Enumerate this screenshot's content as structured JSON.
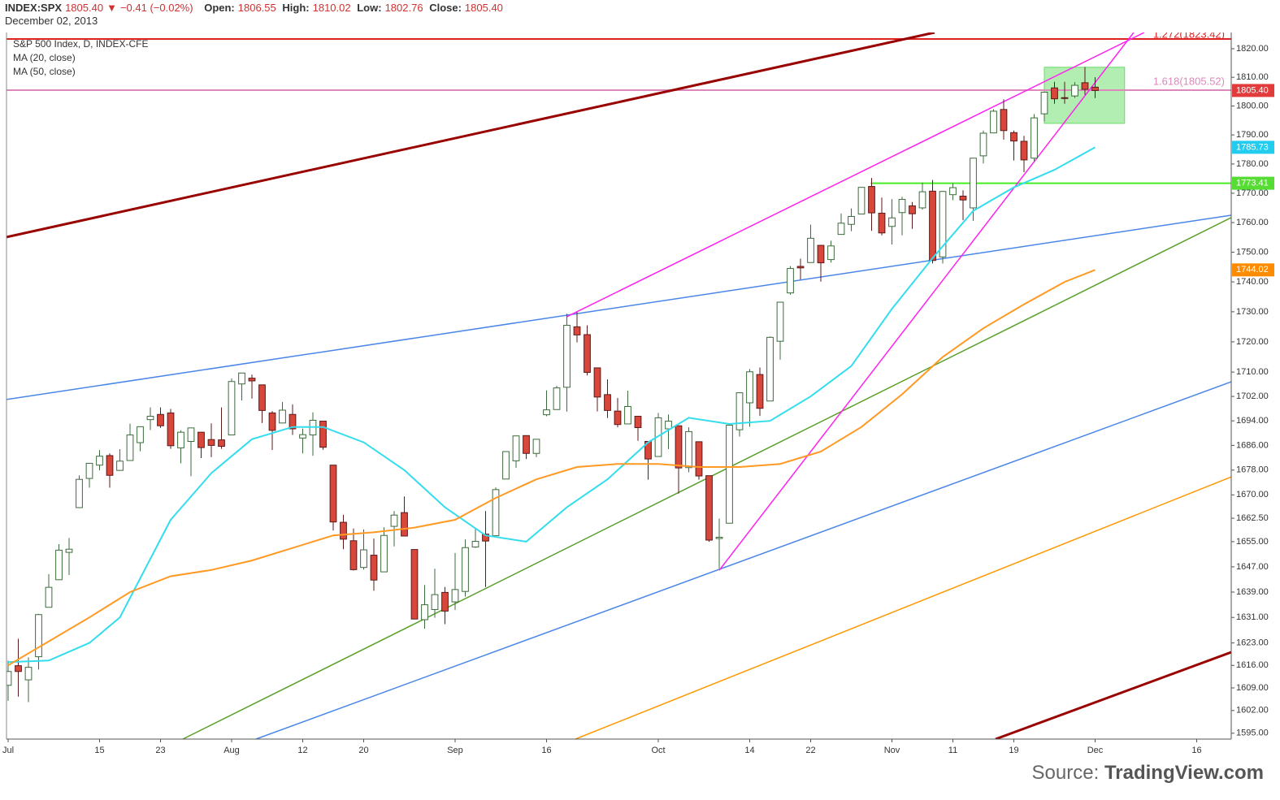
{
  "header": {
    "symbol": "INDEX:SPX",
    "last": "1805.40",
    "arrow": "▼",
    "change": "−0.41 (−0.02%)",
    "fields": [
      {
        "label": "Open:",
        "value": "1806.55"
      },
      {
        "label": "High:",
        "value": "1810.02"
      },
      {
        "label": "Low:",
        "value": "1802.76"
      },
      {
        "label": "Close:",
        "value": "1805.40"
      }
    ],
    "date": "December 02, 2013"
  },
  "chart_data": {
    "type": "candlestick",
    "title": "S&P 500 Index, D, INDEX-CFE",
    "log_scale": true,
    "ylim": [
      1593.2,
      1825.7
    ],
    "xlim": [
      -0.16,
      120.4
    ],
    "yticks": [
      {
        "value": 1595,
        "label": "1595.00"
      },
      {
        "value": 1602,
        "label": "1602.00"
      },
      {
        "value": 1609,
        "label": "1609.00"
      },
      {
        "value": 1616,
        "label": "1616.00"
      },
      {
        "value": 1623,
        "label": "1623.00"
      },
      {
        "value": 1631,
        "label": "1631.00"
      },
      {
        "value": 1639,
        "label": "1639.00"
      },
      {
        "value": 1647,
        "label": "1647.00"
      },
      {
        "value": 1655,
        "label": "1655.00"
      },
      {
        "value": 1662.5,
        "label": "1662.50"
      },
      {
        "value": 1670,
        "label": "1670.00"
      },
      {
        "value": 1678,
        "label": "1678.00"
      },
      {
        "value": 1686,
        "label": "1686.00"
      },
      {
        "value": 1694,
        "label": "1694.00"
      },
      {
        "value": 1702,
        "label": "1702.00"
      },
      {
        "value": 1710,
        "label": "1710.00"
      },
      {
        "value": 1720,
        "label": "1720.00"
      },
      {
        "value": 1730,
        "label": "1730.00"
      },
      {
        "value": 1740,
        "label": "1740.00"
      },
      {
        "value": 1750,
        "label": "1750.00"
      },
      {
        "value": 1760,
        "label": "1760.00"
      },
      {
        "value": 1770,
        "label": "1770.00"
      },
      {
        "value": 1780,
        "label": "1780.00"
      },
      {
        "value": 1790,
        "label": "1790.00"
      },
      {
        "value": 1800,
        "label": "1800.00"
      },
      {
        "value": 1810,
        "label": "1810.00"
      },
      {
        "value": 1820,
        "label": "1820.00"
      }
    ],
    "xticks": [
      {
        "value": 0,
        "label": "Jul"
      },
      {
        "value": 9,
        "label": "15"
      },
      {
        "value": 15,
        "label": "23"
      },
      {
        "value": 22,
        "label": "Aug"
      },
      {
        "value": 29,
        "label": "12"
      },
      {
        "value": 35,
        "label": "20"
      },
      {
        "value": 44,
        "label": "Sep"
      },
      {
        "value": 53,
        "label": "16"
      },
      {
        "value": 64,
        "label": "Oct"
      },
      {
        "value": 73,
        "label": "14"
      },
      {
        "value": 79,
        "label": "22"
      },
      {
        "value": 87,
        "label": "Nov"
      },
      {
        "value": 93,
        "label": "11"
      },
      {
        "value": 99,
        "label": "19"
      },
      {
        "value": 107,
        "label": "Dec"
      },
      {
        "value": 117,
        "label": "16"
      }
    ],
    "up_color": "#3d6b3d",
    "down_color": "#d9473b",
    "open": [
      1609.8,
      1615.9,
      1611.5,
      1618.7,
      1634.2,
      1642.9,
      1651.6,
      1665.9,
      1675.3,
      1679.6,
      1682.7,
      1677.9,
      1681.1,
      1686.9,
      1694.4,
      1696.1,
      1696.6,
      1685.2,
      1687.3,
      1690.3,
      1687.9,
      1687.8,
      1689.4,
      1706.1,
      1708.0,
      1705.8,
      1696.6,
      1693.3,
      1696.1,
      1688.4,
      1689.4,
      1693.9,
      1679.6,
      1661.2,
      1655.3,
      1646.8,
      1650.7,
      1645.4,
      1659.9,
      1664.3,
      1652.5,
      1630.3,
      1633.5,
      1638.9,
      1635.9,
      1639.2,
      1653.3,
      1657.4,
      1656.9,
      1675.1,
      1681.0,
      1689.2,
      1683.4,
      1696.0,
      1697.7,
      1705.0,
      1725.0,
      1722.4,
      1711.4,
      1702.6,
      1697.2,
      1693.0,
      1695.5,
      1687.3,
      1682.4,
      1691.4,
      1692.4,
      1678.8,
      1687.2,
      1676.2,
      1656.0,
      1660.9,
      1691.1,
      1699.9,
      1709.2,
      1700.5,
      1720.2,
      1736.3,
      1745.2,
      1746.5,
      1752.3,
      1747.5,
      1756.0,
      1759.4,
      1762.9,
      1772.3,
      1763.2,
      1758.7,
      1763.4,
      1765.7,
      1765.0,
      1770.7,
      1748.4,
      1769.5,
      1769.0,
      1765.0,
      1782.8,
      1790.7,
      1798.8,
      1790.8,
      1787.8,
      1782.0,
      1797.3,
      1806.3,
      1802.9,
      1803.5,
      1808.1,
      1806.55
    ],
    "high": [
      1617.5,
      1624.3,
      1618.5,
      1632.1,
      1644.7,
      1654.2,
      1656.2,
      1676.3,
      1680.2,
      1684.5,
      1683.4,
      1684.8,
      1693.1,
      1692.1,
      1698.4,
      1698.4,
      1697.9,
      1690.9,
      1691.8,
      1690.3,
      1693.2,
      1698.4,
      1707.9,
      1709.7,
      1709.2,
      1705.8,
      1697.2,
      1700.2,
      1699.4,
      1691.5,
      1696.8,
      1693.9,
      1679.6,
      1663.6,
      1659.2,
      1658.9,
      1656.0,
      1659.6,
      1664.8,
      1669.5,
      1652.5,
      1641.2,
      1646.4,
      1640.6,
      1651.4,
      1655.7,
      1659.1,
      1664.8,
      1672.4,
      1684.1,
      1689.1,
      1689.2,
      1688.0,
      1704.0,
      1705.5,
      1729.4,
      1729.9,
      1725.5,
      1711.4,
      1707.6,
      1701.5,
      1703.9,
      1695.5,
      1687.3,
      1696.6,
      1696.1,
      1692.4,
      1691.9,
      1687.2,
      1676.2,
      1662.4,
      1692.6,
      1703.4,
      1711.0,
      1711.5,
      1721.8,
      1733.4,
      1745.3,
      1747.8,
      1759.3,
      1752.3,
      1753.9,
      1763.1,
      1764.8,
      1772.1,
      1775.2,
      1768.5,
      1768.0,
      1768.8,
      1767.0,
      1773.6,
      1774.5,
      1770.8,
      1773.4,
      1771.0,
      1782.0,
      1791.5,
      1798.9,
      1802.3,
      1791.5,
      1789.7,
      1797.2,
      1804.8,
      1808.4,
      1808.4,
      1808.3,
      1813.6,
      1810.02
    ],
    "low": [
      1605.0,
      1606.3,
      1604.6,
      1614.7,
      1634.2,
      1642.9,
      1644.4,
      1665.9,
      1672.3,
      1677.9,
      1672.3,
      1677.9,
      1681.1,
      1684.1,
      1691.0,
      1691.7,
      1684.9,
      1680.2,
      1676.0,
      1681.9,
      1682.2,
      1684.9,
      1689.4,
      1700.7,
      1701.3,
      1693.3,
      1684.5,
      1693.2,
      1689.4,
      1683.4,
      1682.6,
      1684.6,
      1658.6,
      1652.6,
      1645.8,
      1646.1,
      1639.4,
      1645.4,
      1653.5,
      1656.8,
      1630.5,
      1627.5,
      1630.9,
      1628.9,
      1633.4,
      1637.6,
      1653.0,
      1640.6,
      1656.9,
      1675.1,
      1678.7,
      1681.6,
      1682.2,
      1695.5,
      1697.7,
      1697.0,
      1719.8,
      1708.9,
      1697.1,
      1694.9,
      1691.9,
      1693.0,
      1687.5,
      1674.9,
      1682.4,
      1684.8,
      1670.4,
      1677.3,
      1674.9,
      1655.0,
      1646.5,
      1660.9,
      1688.9,
      1692.1,
      1695.6,
      1700.5,
      1714.1,
      1735.7,
      1740.8,
      1746.5,
      1740.1,
      1746.5,
      1756.0,
      1757.1,
      1762.9,
      1757.2,
      1755.7,
      1752.6,
      1755.7,
      1757.9,
      1764.4,
      1746.2,
      1746.2,
      1767.6,
      1760.8,
      1760.6,
      1780.2,
      1790.7,
      1788.4,
      1781.2,
      1777.2,
      1780.9,
      1794.7,
      1800.8,
      1800.8,
      1802.8,
      1803.9,
      1802.76
    ],
    "close": [
      1614.1,
      1614.1,
      1615.4,
      1631.9,
      1640.5,
      1652.3,
      1652.6,
      1675.0,
      1680.2,
      1682.5,
      1676.3,
      1680.9,
      1689.4,
      1692.1,
      1695.5,
      1692.4,
      1685.9,
      1690.3,
      1691.7,
      1685.3,
      1686.0,
      1685.7,
      1706.9,
      1709.7,
      1707.1,
      1697.4,
      1690.9,
      1697.5,
      1691.4,
      1689.5,
      1694.2,
      1685.4,
      1661.3,
      1655.8,
      1646.1,
      1652.4,
      1642.8,
      1657.0,
      1663.5,
      1656.8,
      1630.5,
      1635.0,
      1638.2,
      1633.0,
      1639.8,
      1653.1,
      1655.1,
      1655.2,
      1671.7,
      1684.0,
      1689.1,
      1683.4,
      1688.0,
      1697.6,
      1704.8,
      1725.5,
      1722.3,
      1709.9,
      1701.8,
      1697.4,
      1692.8,
      1698.7,
      1691.8,
      1681.6,
      1695.0,
      1693.9,
      1678.7,
      1690.5,
      1676.1,
      1655.5,
      1656.4,
      1692.6,
      1703.2,
      1710.1,
      1698.1,
      1721.5,
      1733.2,
      1744.5,
      1744.7,
      1754.7,
      1746.4,
      1752.1,
      1759.8,
      1762.1,
      1772.0,
      1763.3,
      1756.5,
      1761.6,
      1767.9,
      1763.0,
      1770.5,
      1747.2,
      1770.6,
      1771.9,
      1767.7,
      1782.0,
      1790.6,
      1798.2,
      1791.5,
      1787.9,
      1781.4,
      1795.9,
      1804.8,
      1802.5,
      1802.8,
      1807.2,
      1805.8,
      1805.4
    ],
    "series": [
      {
        "name": "MA (20, close)",
        "color": "#33ddee",
        "x": [
          0,
          4,
          8,
          11,
          16,
          20,
          24,
          28,
          31,
          35,
          39,
          43,
          47,
          51,
          55,
          59,
          63,
          67,
          71,
          75,
          79,
          83,
          87,
          91,
          95,
          99,
          103,
          107
        ],
        "values": [
          1617,
          1617.5,
          1623,
          1631,
          1662,
          1677,
          1688,
          1692,
          1692,
          1687,
          1678,
          1666,
          1657,
          1655,
          1666,
          1675,
          1687,
          1695,
          1693,
          1694,
          1702,
          1712,
          1731,
          1748,
          1764,
          1772,
          1778,
          1785.73
        ]
      },
      {
        "name": "MA (50, close)",
        "color": "#ff9922",
        "x": [
          0,
          8,
          12,
          16,
          20,
          24,
          28,
          32,
          36,
          40,
          44,
          48,
          52,
          56,
          60,
          64,
          68,
          72,
          76,
          80,
          84,
          88,
          92,
          96,
          100,
          104,
          107
        ],
        "values": [
          1616,
          1631,
          1639,
          1644,
          1646,
          1649,
          1653,
          1657,
          1658,
          1659.5,
          1662,
          1669,
          1675,
          1679,
          1680,
          1680,
          1679,
          1679,
          1680,
          1684,
          1692,
          1702.7,
          1715,
          1724.5,
          1732.5,
          1740,
          1744.02
        ]
      }
    ],
    "trendlines": [
      {
        "color": "#990000",
        "x": [
          -0.16,
          91.2
        ],
        "values": [
          1755.1,
          1825.7
        ]
      },
      {
        "color": "#990000",
        "x": [
          97.2,
          120.4
        ],
        "values": [
          1593.2,
          1620.1
        ]
      },
      {
        "color": "#4a86e8",
        "x": [
          -0.16,
          120.4
        ],
        "values": [
          1701.0,
          1762.5
        ]
      },
      {
        "color": "#4a86e8",
        "x": [
          24.4,
          120.4
        ],
        "values": [
          1593.2,
          1706.8
        ]
      },
      {
        "color": "#5aa02c",
        "x": [
          17.2,
          120.4
        ],
        "values": [
          1593.2,
          1761.7
        ]
      },
      {
        "color": "#ff9900",
        "x": [
          55.84,
          120.4
        ],
        "values": [
          1593.2,
          1675.8
        ]
      },
      {
        "color": "#ff22ee",
        "x": [
          54.96,
          111.84
        ],
        "values": [
          1728.3,
          1825.7
        ]
      },
      {
        "color": "#ff22ee",
        "x": [
          70,
          110.8
        ],
        "values": [
          1645.9,
          1825.7
        ]
      }
    ],
    "levels": [
      {
        "value": 1823.42,
        "color": "#dd2222",
        "label": "1.272(1823.42)",
        "from": -0.16
      },
      {
        "value": 1805.52,
        "color": "#dd88bb",
        "label": "1.618(1805.52)",
        "from": -0.16
      },
      {
        "value": 1773.41,
        "color": "#44ee22",
        "from": 84.9
      }
    ],
    "zone": {
      "x": [
        102,
        109.9
      ],
      "values": [
        1794.0,
        1813.5
      ],
      "color": "#66dd66"
    },
    "price_labels": [
      {
        "value": 1805.4,
        "label": "1805.40",
        "color": "#e23b3b"
      },
      {
        "value": 1785.73,
        "label": "1785.73",
        "color": "#22ccee"
      },
      {
        "value": 1773.41,
        "label": "1773.41",
        "color": "#55dd33"
      },
      {
        "value": 1744.02,
        "label": "1744.02",
        "color": "#ff8c00"
      }
    ]
  },
  "source": {
    "prefix": "Source:",
    "brand": "TradingView.com"
  }
}
